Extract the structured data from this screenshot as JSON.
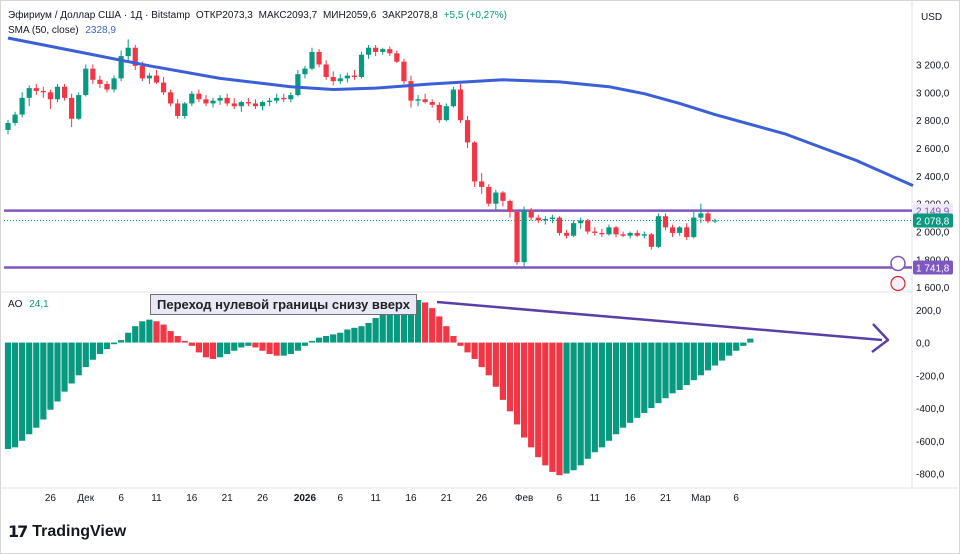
{
  "header": {
    "symbol": "Эфириум / Доллар США · 1Д · Bitstamp",
    "o": "ОТКР2073,3",
    "h": "МАКС2093,7",
    "l": "МИН2059,6",
    "c": "ЗАКР2078,8",
    "chg": "+5,5 (+0,27%)",
    "currency": "USD"
  },
  "sma": {
    "label": "SMA (50, close)",
    "value": "2328,9"
  },
  "ao": {
    "label": "AO",
    "value": "24,1"
  },
  "annotation": "Переход нулевой границы снизу вверх",
  "logo": {
    "text": "TradingView"
  },
  "colors": {
    "up": "#089981",
    "down": "#f23645",
    "sma": "#3b5fd6",
    "level": "#7e57c2",
    "arrow": "#5b3fa8"
  },
  "chart_data": [
    {
      "type": "candlestick",
      "title": "Эфириум / Доллар США · 1Д · Bitstamp",
      "y_ticks": [
        "3 200,0",
        "3 000,0",
        "2 800,0",
        "2 600,0",
        "2 400,0",
        "2 200,0",
        "2 000,0",
        "1 800,0",
        "1 600,0"
      ],
      "ylim": [
        1580,
        3390
      ],
      "x_tick_labels": [
        "26",
        "Дек",
        "6",
        "11",
        "16",
        "21",
        "26",
        "2026",
        "6",
        "11",
        "16",
        "21",
        "26",
        "Фев",
        "6",
        "11",
        "16",
        "21",
        "Мар",
        "6"
      ],
      "x_tick_bars": [
        6,
        11,
        16,
        21,
        26,
        31,
        36,
        42,
        47,
        52,
        57,
        62,
        67,
        73,
        78,
        83,
        88,
        93,
        98,
        103
      ],
      "candles": [
        [
          2730,
          2800,
          2700,
          2780
        ],
        [
          2780,
          2860,
          2760,
          2840
        ],
        [
          2840,
          3000,
          2820,
          2960
        ],
        [
          2960,
          3050,
          2900,
          3030
        ],
        [
          3030,
          3060,
          2980,
          3010
        ],
        [
          3010,
          3040,
          2960,
          3000
        ],
        [
          3000,
          3020,
          2880,
          2950
        ],
        [
          2950,
          3060,
          2930,
          3040
        ],
        [
          3040,
          3060,
          2940,
          2960
        ],
        [
          2960,
          2990,
          2750,
          2810
        ],
        [
          2810,
          3000,
          2800,
          2980
        ],
        [
          2980,
          3200,
          2970,
          3170
        ],
        [
          3170,
          3200,
          3060,
          3090
        ],
        [
          3090,
          3120,
          3030,
          3060
        ],
        [
          3060,
          3080,
          3000,
          3020
        ],
        [
          3020,
          3120,
          3000,
          3100
        ],
        [
          3100,
          3300,
          3080,
          3260
        ],
        [
          3260,
          3380,
          3220,
          3320
        ],
        [
          3320,
          3340,
          3160,
          3190
        ],
        [
          3190,
          3220,
          3080,
          3100
        ],
        [
          3100,
          3140,
          3060,
          3120
        ],
        [
          3120,
          3160,
          3060,
          3070
        ],
        [
          3070,
          3110,
          2980,
          3000
        ],
        [
          3000,
          3020,
          2900,
          2920
        ],
        [
          2920,
          2950,
          2810,
          2830
        ],
        [
          2830,
          2930,
          2810,
          2920
        ],
        [
          2920,
          3010,
          2900,
          2990
        ],
        [
          2990,
          3020,
          2930,
          2950
        ],
        [
          2950,
          2980,
          2900,
          2920
        ],
        [
          2920,
          2960,
          2890,
          2940
        ],
        [
          2940,
          2980,
          2910,
          2960
        ],
        [
          2960,
          2990,
          2900,
          2920
        ],
        [
          2920,
          2960,
          2880,
          2900
        ],
        [
          2900,
          2940,
          2860,
          2930
        ],
        [
          2930,
          2960,
          2900,
          2920
        ],
        [
          2920,
          2950,
          2880,
          2900
        ],
        [
          2900,
          2940,
          2870,
          2930
        ],
        [
          2930,
          2960,
          2900,
          2940
        ],
        [
          2940,
          2990,
          2920,
          2960
        ],
        [
          2960,
          2990,
          2930,
          2950
        ],
        [
          2950,
          3000,
          2930,
          2980
        ],
        [
          2980,
          3160,
          2970,
          3130
        ],
        [
          3130,
          3190,
          3100,
          3170
        ],
        [
          3170,
          3320,
          3160,
          3290
        ],
        [
          3290,
          3310,
          3180,
          3200
        ],
        [
          3200,
          3230,
          3090,
          3110
        ],
        [
          3110,
          3150,
          3050,
          3080
        ],
        [
          3080,
          3130,
          3060,
          3100
        ],
        [
          3100,
          3140,
          3070,
          3120
        ],
        [
          3120,
          3160,
          3090,
          3110
        ],
        [
          3110,
          3290,
          3100,
          3270
        ],
        [
          3270,
          3340,
          3240,
          3320
        ],
        [
          3320,
          3340,
          3260,
          3290
        ],
        [
          3290,
          3320,
          3270,
          3310
        ],
        [
          3310,
          3330,
          3260,
          3280
        ],
        [
          3280,
          3300,
          3210,
          3220
        ],
        [
          3220,
          3240,
          3060,
          3080
        ],
        [
          3080,
          3120,
          2890,
          2940
        ],
        [
          2940,
          2980,
          2900,
          2950
        ],
        [
          2950,
          2990,
          2920,
          2930
        ],
        [
          2930,
          2950,
          2890,
          2910
        ],
        [
          2910,
          2930,
          2780,
          2800
        ],
        [
          2800,
          2920,
          2790,
          2900
        ],
        [
          2900,
          3040,
          2890,
          3020
        ],
        [
          3020,
          3060,
          2780,
          2800
        ],
        [
          2800,
          2830,
          2600,
          2640
        ],
        [
          2640,
          2650,
          2320,
          2360
        ],
        [
          2360,
          2420,
          2270,
          2320
        ],
        [
          2320,
          2340,
          2180,
          2200
        ],
        [
          2200,
          2300,
          2150,
          2280
        ],
        [
          2280,
          2290,
          2180,
          2220
        ],
        [
          2220,
          2230,
          2100,
          2140
        ],
        [
          2140,
          2150,
          1760,
          1780
        ],
        [
          1780,
          2180,
          1750,
          2150
        ],
        [
          2150,
          2170,
          2080,
          2100
        ],
        [
          2100,
          2120,
          2060,
          2080
        ],
        [
          2080,
          2110,
          2050,
          2090
        ],
        [
          2090,
          2120,
          2060,
          2100
        ],
        [
          2100,
          2110,
          1970,
          1990
        ],
        [
          1990,
          2010,
          1950,
          1970
        ],
        [
          1970,
          2080,
          1960,
          2060
        ],
        [
          2060,
          2100,
          2020,
          2080
        ],
        [
          2080,
          2090,
          1980,
          2000
        ],
        [
          2000,
          2030,
          1970,
          1990
        ],
        [
          1990,
          2020,
          1960,
          1980
        ],
        [
          1980,
          2050,
          1970,
          2030
        ],
        [
          2030,
          2040,
          1960,
          1980
        ],
        [
          1980,
          2000,
          1960,
          1970
        ],
        [
          1970,
          2000,
          1950,
          1990
        ],
        [
          1990,
          2010,
          1960,
          1970
        ],
        [
          1970,
          2000,
          1950,
          1980
        ],
        [
          1980,
          1990,
          1870,
          1890
        ],
        [
          1890,
          2130,
          1880,
          2110
        ],
        [
          2110,
          2130,
          2010,
          2030
        ],
        [
          2030,
          2050,
          1960,
          1990
        ],
        [
          1990,
          2040,
          1970,
          2030
        ],
        [
          2030,
          2060,
          1940,
          1960
        ],
        [
          1960,
          2140,
          1950,
          2100
        ],
        [
          2100,
          2200,
          2060,
          2130
        ],
        [
          2130,
          2150,
          2060,
          2073
        ],
        [
          2073,
          2094,
          2060,
          2079
        ]
      ],
      "sma50": [
        [
          0,
          3390
        ],
        [
          10,
          3290
        ],
        [
          20,
          3190
        ],
        [
          30,
          3100
        ],
        [
          40,
          3040
        ],
        [
          46,
          3020
        ],
        [
          52,
          3030
        ],
        [
          60,
          3060
        ],
        [
          70,
          3090
        ],
        [
          78,
          3075
        ],
        [
          85,
          3040
        ],
        [
          90,
          2990
        ],
        [
          95,
          2920
        ],
        [
          100,
          2840
        ],
        [
          110,
          2700
        ],
        [
          120,
          2510
        ],
        [
          128,
          2330
        ]
      ],
      "levels": [
        {
          "value": 2149.9,
          "label": "2 149,9"
        },
        {
          "value": 1741.8,
          "label": "1 741,8"
        }
      ],
      "last_price_label": "2 078,8",
      "sma_label": "2 328,9"
    },
    {
      "type": "bar",
      "title": "AO",
      "y_ticks": [
        "200,0",
        "0,0",
        "-200,0",
        "-400,0",
        "-600,0",
        "-800,0"
      ],
      "ylim": [
        -870,
        260
      ],
      "values": [
        -650,
        -640,
        -600,
        -560,
        -520,
        -470,
        -410,
        -360,
        -300,
        -250,
        -200,
        -150,
        -105,
        -70,
        -40,
        -10,
        15,
        60,
        100,
        130,
        140,
        130,
        110,
        70,
        40,
        10,
        -20,
        -60,
        -90,
        -100,
        -90,
        -70,
        -50,
        -30,
        -20,
        -30,
        -50,
        -70,
        -80,
        -80,
        -70,
        -50,
        -20,
        10,
        30,
        40,
        50,
        60,
        80,
        90,
        100,
        120,
        150,
        170,
        190,
        200,
        230,
        250,
        260,
        245,
        210,
        160,
        100,
        40,
        -20,
        -60,
        -100,
        -150,
        -200,
        -270,
        -350,
        -420,
        -500,
        -580,
        -640,
        -700,
        -750,
        -790,
        -810,
        -800,
        -780,
        -750,
        -710,
        -670,
        -640,
        -600,
        -560,
        -520,
        -490,
        -460,
        -430,
        -400,
        -370,
        -340,
        -310,
        -290,
        -260,
        -230,
        -200,
        -170,
        -140,
        -110,
        -80,
        -50,
        -20,
        24
      ],
      "bar_colors": "g-r",
      "annotation": "Переход нулевой границы снизу вверх"
    }
  ]
}
